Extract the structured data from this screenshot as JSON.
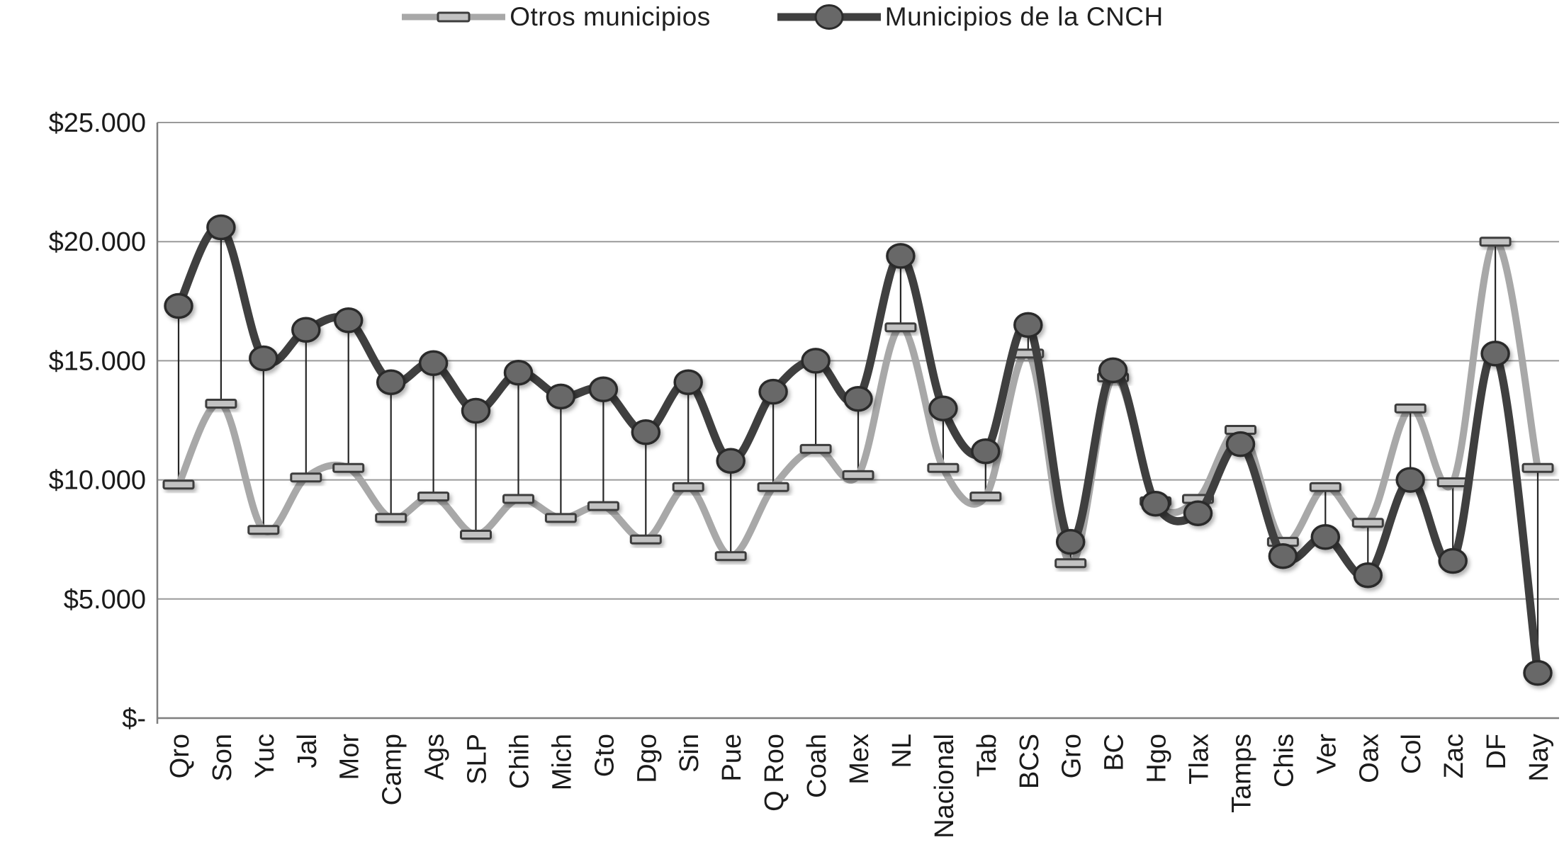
{
  "chart_data": {
    "type": "line",
    "title": "",
    "xlabel": "",
    "ylabel": "",
    "legend_position": "top",
    "grid": "horizontal",
    "high_low_lines": true,
    "smooth_lines": true,
    "categories": [
      "Qro",
      "Son",
      "Yuc",
      "Jal",
      "Mor",
      "Camp",
      "Ags",
      "SLP",
      "Chih",
      "Mich",
      "Gto",
      "Dgo",
      "Sin",
      "Pue",
      "Q Roo",
      "Coah",
      "Mex",
      "NL",
      "Nacional",
      "Tab",
      "BCS",
      "Gro",
      "BC",
      "Hgo",
      "Tlax",
      "Tamps",
      "Chis",
      "Ver",
      "Oax",
      "Col",
      "Zac",
      "DF",
      "Nay"
    ],
    "series": [
      {
        "name": "Otros municipios",
        "marker": "dash-square",
        "values": [
          9800,
          13200,
          7900,
          10100,
          10500,
          8400,
          9300,
          7700,
          9200,
          8400,
          8900,
          7500,
          9700,
          6800,
          9700,
          11300,
          10200,
          16400,
          10500,
          9300,
          15300,
          6500,
          14300,
          9100,
          9200,
          12100,
          7400,
          9700,
          8200,
          13000,
          9900,
          20000,
          10500
        ]
      },
      {
        "name": "Municipios de la CNCH",
        "marker": "circle",
        "values": [
          17300,
          20600,
          15100,
          16300,
          16700,
          14100,
          14900,
          12900,
          14500,
          13500,
          13800,
          12000,
          14100,
          10800,
          13700,
          15000,
          13400,
          19400,
          13000,
          11200,
          16500,
          7400,
          14600,
          9000,
          8600,
          11500,
          6800,
          7600,
          6000,
          10000,
          6600,
          15300,
          1900
        ]
      }
    ],
    "y_axis": {
      "min": 0,
      "max": 25000,
      "tick_step": 5000,
      "ticks": [
        {
          "value": 0,
          "label": "$-"
        },
        {
          "value": 5000,
          "label": "$5.000"
        },
        {
          "value": 10000,
          "label": "$10.000"
        },
        {
          "value": 15000,
          "label": "$15.000"
        },
        {
          "value": 20000,
          "label": "$20.000"
        },
        {
          "value": 25000,
          "label": "$25.000"
        }
      ]
    }
  },
  "colors": {
    "otros_line": "#a8a8a8",
    "otros_marker_fill": "#c2c2c2",
    "otros_marker_stroke": "#3d3d3d",
    "cnch_line": "#3f3f3f",
    "cnch_marker_fill": "#686868",
    "cnch_marker_stroke": "#2b2b2b",
    "gridline": "#9a9a9a",
    "axis_line": "#7f7f7f",
    "drop_line": "#262626",
    "text": "#1a1a1a"
  }
}
